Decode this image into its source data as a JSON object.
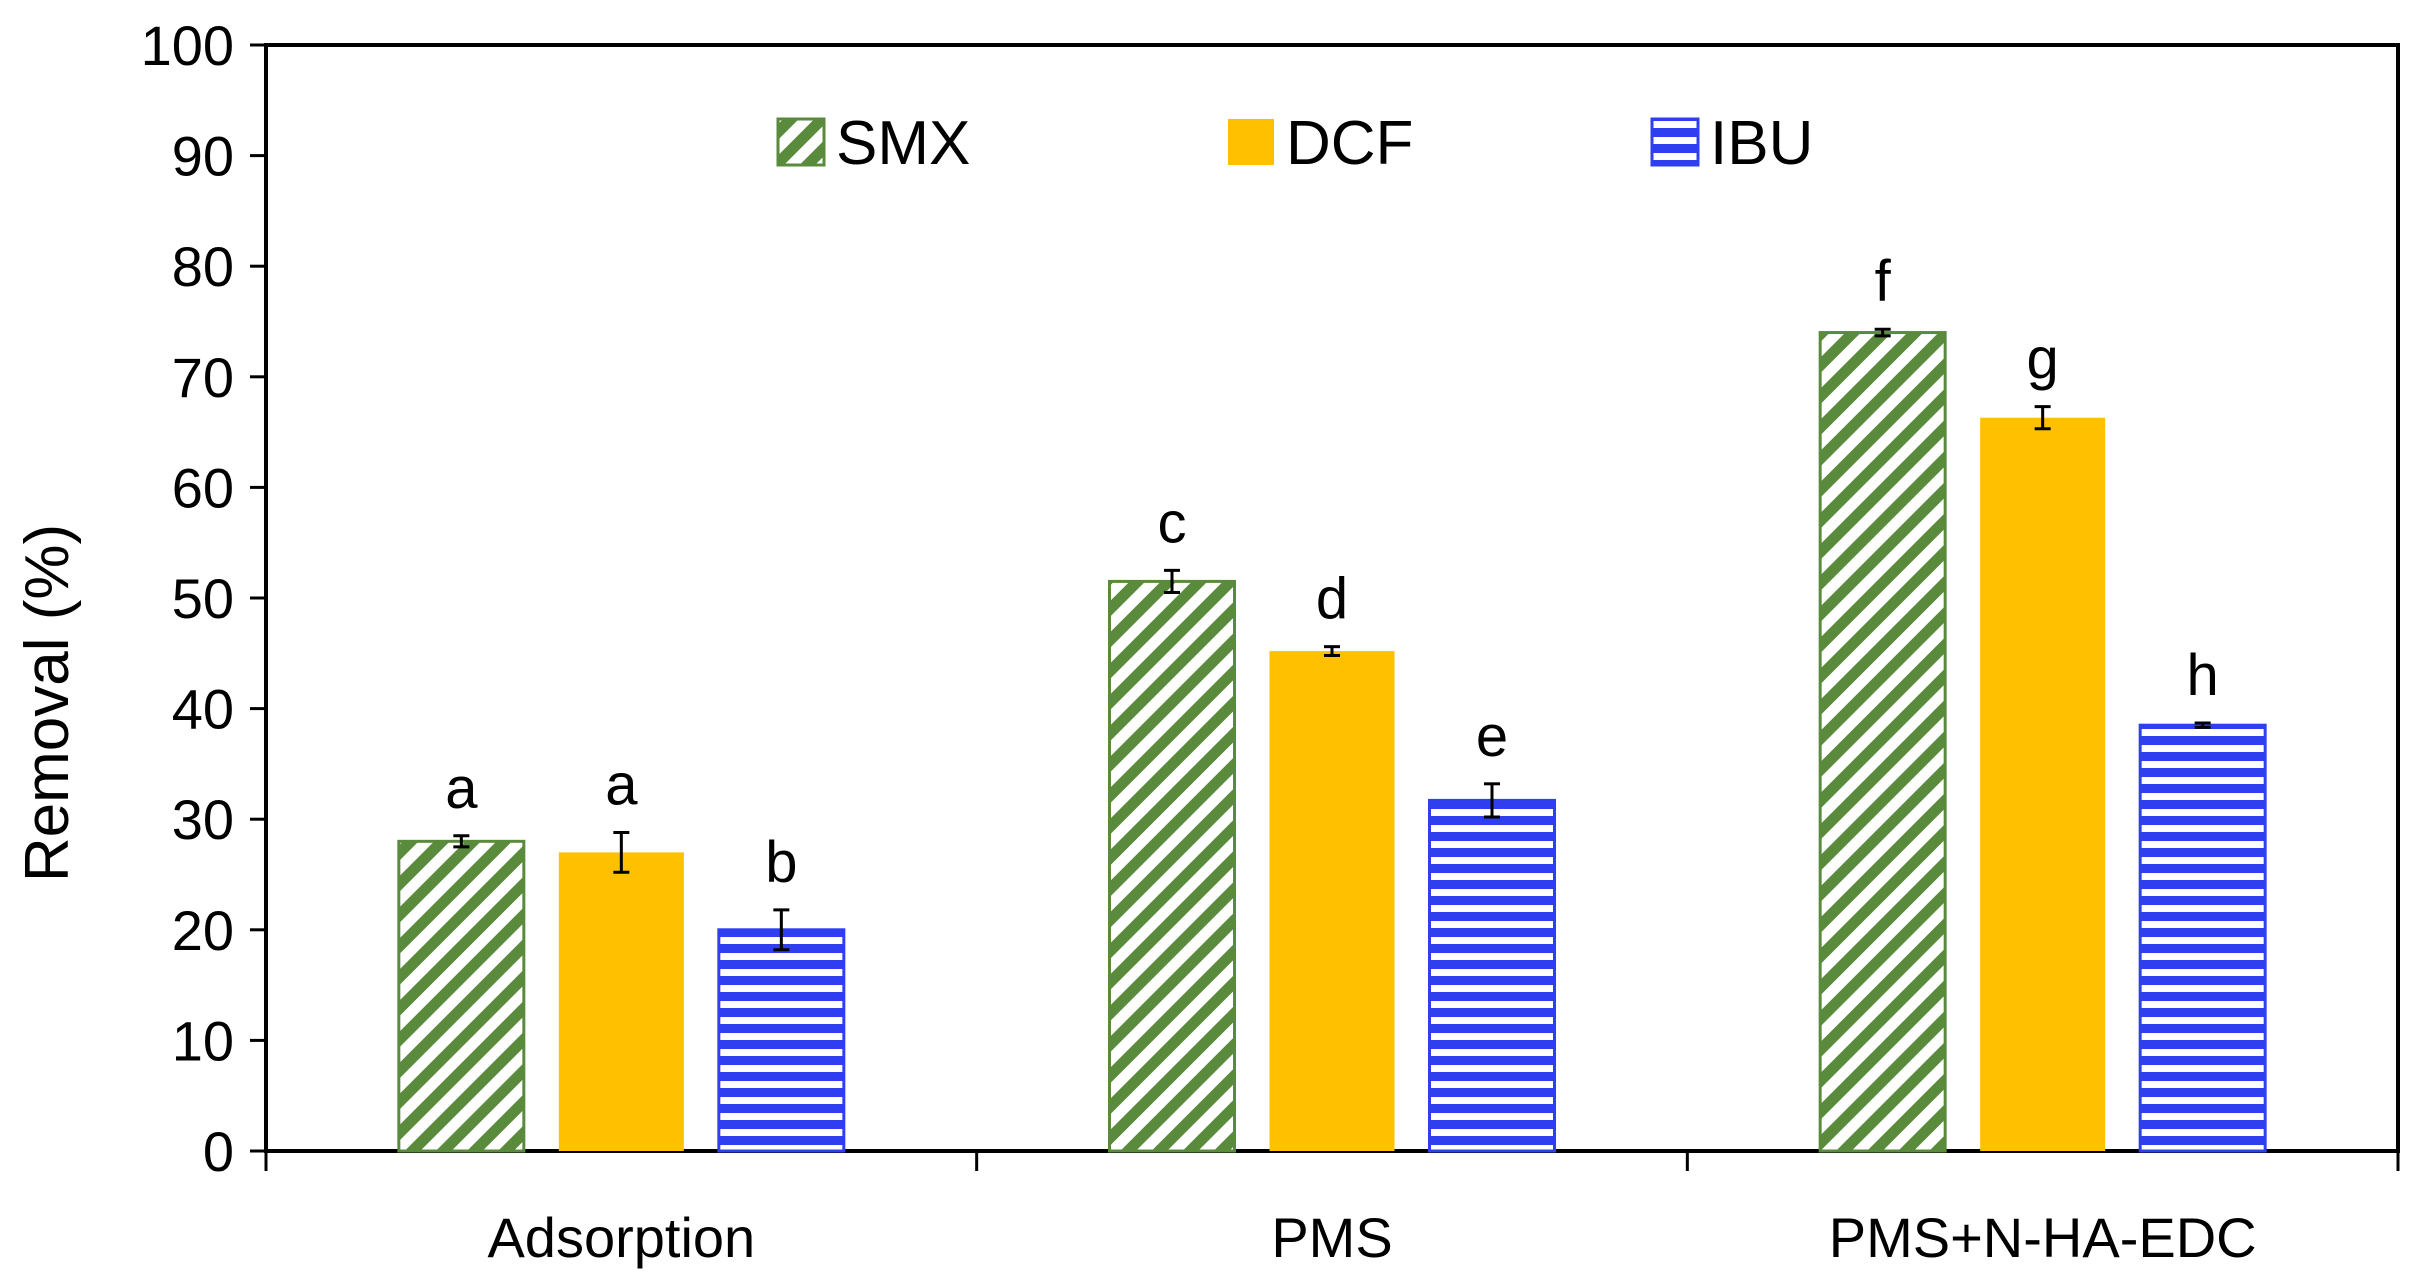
{
  "chart_data": {
    "type": "bar",
    "title": "",
    "xlabel": "",
    "ylabel": "Removal (%)",
    "ylim": [
      0,
      100
    ],
    "ytick_step": 10,
    "categories": [
      "Adsorption",
      "PMS",
      "PMS+N-HA-EDC"
    ],
    "series": [
      {
        "name": "SMX",
        "pattern": "diagonal-hatch",
        "color": "#5a8a3c",
        "values": [
          28.0,
          51.5,
          74.0
        ],
        "errors": [
          0.5,
          1.0,
          0.3
        ],
        "significance": [
          "a",
          "c",
          "f"
        ]
      },
      {
        "name": "DCF",
        "pattern": "solid",
        "color": "#ffc000",
        "values": [
          27.0,
          45.2,
          66.3
        ],
        "errors": [
          1.8,
          0.4,
          1.0
        ],
        "significance": [
          "a",
          "d",
          "g"
        ]
      },
      {
        "name": "IBU",
        "pattern": "horizontal-stripes",
        "color": "#2f3ff0",
        "values": [
          20.0,
          31.7,
          38.5
        ],
        "errors": [
          1.8,
          1.5,
          0.2
        ],
        "significance": [
          "b",
          "e",
          "h"
        ]
      }
    ],
    "legend_position": "top-center",
    "grid": false
  }
}
